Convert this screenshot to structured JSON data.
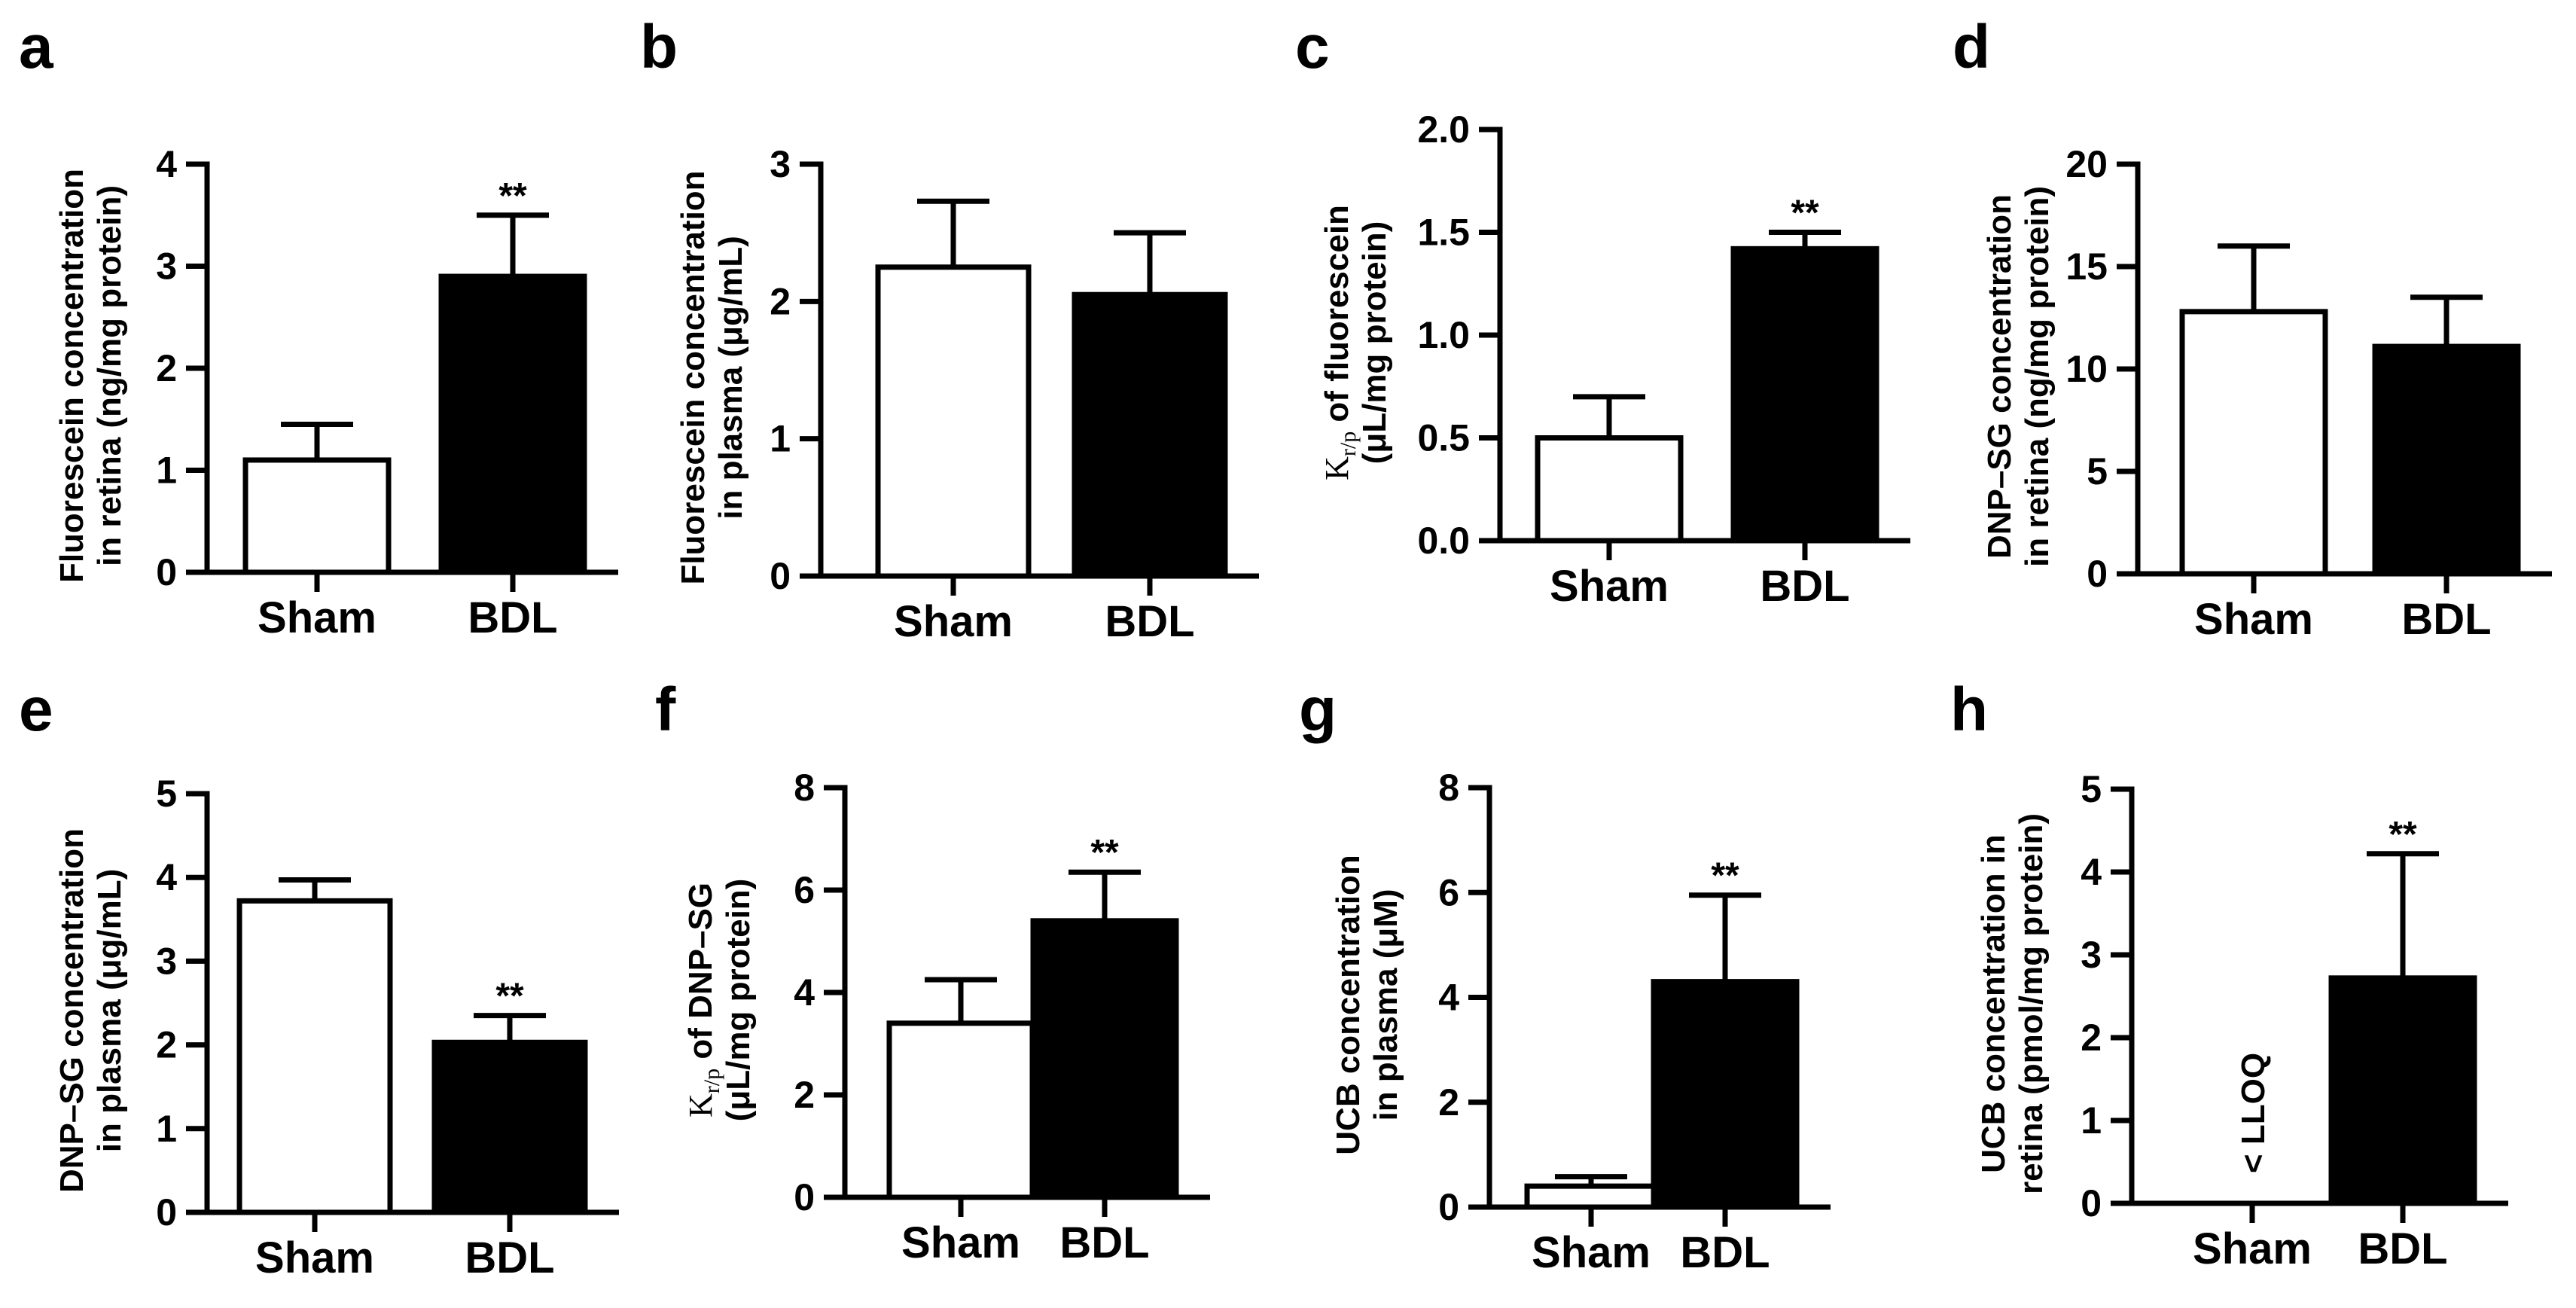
{
  "chart_data": [
    {
      "panel": "a",
      "type": "bar",
      "categories": [
        "Sham",
        "BDL"
      ],
      "values": [
        1.1,
        2.9
      ],
      "errors": [
        0.35,
        0.6
      ],
      "ylim": [
        0,
        4
      ],
      "yticks": [
        "0",
        "1",
        "2",
        "3",
        "4"
      ],
      "ylabel": [
        "Fluorescein concentration",
        "in retina (ng/mg protein)"
      ],
      "significance": [
        "",
        "**"
      ],
      "bar_colors": [
        "#ffffff",
        "#000000"
      ]
    },
    {
      "panel": "b",
      "type": "bar",
      "categories": [
        "Sham",
        "BDL"
      ],
      "values": [
        2.25,
        2.05
      ],
      "errors": [
        0.48,
        0.45
      ],
      "ylim": [
        0,
        3
      ],
      "yticks": [
        "0",
        "1",
        "2",
        "3"
      ],
      "ylabel": [
        "Fluorescein concentration",
        "in plasma (μg/mL)"
      ],
      "significance": [
        "",
        ""
      ],
      "bar_colors": [
        "#ffffff",
        "#000000"
      ]
    },
    {
      "panel": "c",
      "type": "bar",
      "categories": [
        "Sham",
        "BDL"
      ],
      "values": [
        0.5,
        1.42
      ],
      "errors": [
        0.2,
        0.08
      ],
      "ylim": [
        0,
        2
      ],
      "yticks": [
        "0.0",
        "0.5",
        "1.0",
        "1.5",
        "2.0"
      ],
      "ylabel_kr": {
        "main": "K",
        "sub": "r/p",
        "rest": " of fluorescein"
      },
      "ylabel": [
        "(μL/mg protein)"
      ],
      "significance": [
        "",
        "**"
      ],
      "bar_colors": [
        "#ffffff",
        "#000000"
      ]
    },
    {
      "panel": "d",
      "type": "bar",
      "categories": [
        "Sham",
        "BDL"
      ],
      "values": [
        12.8,
        11.1
      ],
      "errors": [
        3.2,
        2.4
      ],
      "ylim": [
        0,
        20
      ],
      "yticks": [
        "0",
        "5",
        "10",
        "15",
        "20"
      ],
      "ylabel": [
        "DNP–SG concentration",
        "in retina (ng/mg protein)"
      ],
      "significance": [
        "",
        ""
      ],
      "bar_colors": [
        "#ffffff",
        "#000000"
      ]
    },
    {
      "panel": "e",
      "type": "bar",
      "categories": [
        "Sham",
        "BDL"
      ],
      "values": [
        3.72,
        2.03
      ],
      "errors": [
        0.25,
        0.32
      ],
      "ylim": [
        0,
        5
      ],
      "yticks": [
        "0",
        "1",
        "2",
        "3",
        "4",
        "5"
      ],
      "ylabel": [
        "DNP–SG concentration",
        "in plasma (μg/mL)"
      ],
      "significance": [
        "",
        "**"
      ],
      "bar_colors": [
        "#ffffff",
        "#000000"
      ]
    },
    {
      "panel": "f",
      "type": "bar",
      "categories": [
        "Sham",
        "BDL"
      ],
      "values": [
        3.4,
        5.4
      ],
      "errors": [
        0.85,
        0.95
      ],
      "ylim": [
        0,
        8
      ],
      "yticks": [
        "0",
        "2",
        "4",
        "6",
        "8"
      ],
      "ylabel_kr": {
        "main": "K",
        "sub": "r/p",
        "rest": " of DNP–SG"
      },
      "ylabel": [
        "(μL/mg protein)"
      ],
      "significance": [
        "",
        "**"
      ],
      "bar_colors": [
        "#ffffff",
        "#000000"
      ]
    },
    {
      "panel": "g",
      "type": "bar",
      "categories": [
        "Sham",
        "BDL"
      ],
      "values": [
        0.4,
        4.3
      ],
      "errors": [
        0.18,
        1.65
      ],
      "ylim": [
        0,
        8
      ],
      "yticks": [
        "0",
        "2",
        "4",
        "6",
        "8"
      ],
      "ylabel": [
        "UCB concentration",
        "in plasma (μM)"
      ],
      "significance": [
        "",
        "**"
      ],
      "bar_colors": [
        "#ffffff",
        "#000000"
      ]
    },
    {
      "panel": "h",
      "type": "bar",
      "categories": [
        "Sham",
        "BDL"
      ],
      "values": [
        null,
        2.72
      ],
      "errors": [
        null,
        1.5
      ],
      "ylim": [
        0,
        5
      ],
      "yticks": [
        "0",
        "1",
        "2",
        "3",
        "4",
        "5"
      ],
      "ylabel": [
        "UCB concentration in",
        "retina (pmol/mg protein)"
      ],
      "significance": [
        "",
        "**"
      ],
      "bar_annotations": [
        "< LLOQ",
        ""
      ],
      "bar_colors": [
        "#ffffff",
        "#000000"
      ]
    }
  ]
}
